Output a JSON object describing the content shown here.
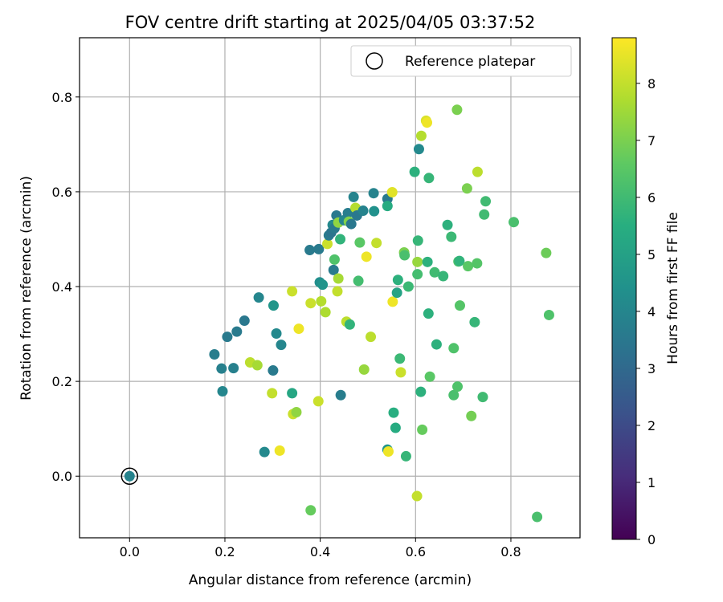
{
  "chart_data": {
    "type": "scatter",
    "title": "FOV centre drift starting at 2025/04/05 03:37:52",
    "xlabel": "Angular distance from reference (arcmin)",
    "ylabel": "Rotation from reference (arcmin)",
    "xlim": [
      -0.105,
      0.945
    ],
    "ylim": [
      -0.13,
      0.925
    ],
    "x_ticks": [
      "0.0",
      "0.2",
      "0.4",
      "0.6",
      "0.8"
    ],
    "y_ticks": [
      "0.0",
      "0.2",
      "0.4",
      "0.6",
      "0.8"
    ],
    "grid": true,
    "legend": {
      "placement": "top-right",
      "entries": [
        "Reference platepar"
      ]
    },
    "colorbar": {
      "label": "Hours from first FF file",
      "colormap": "viridis",
      "range": [
        0,
        8.8
      ],
      "ticks": [
        "0",
        "1",
        "2",
        "3",
        "4",
        "5",
        "6",
        "7",
        "8"
      ]
    },
    "reference_point": {
      "x": 0.0,
      "y": 0.0
    },
    "points": [
      [
        0.0,
        0.0,
        3.9
      ],
      [
        0.178,
        0.257,
        3.7
      ],
      [
        0.193,
        0.227,
        3.8
      ],
      [
        0.195,
        0.179,
        4.0
      ],
      [
        0.205,
        0.294,
        3.6
      ],
      [
        0.218,
        0.228,
        3.8
      ],
      [
        0.225,
        0.305,
        3.6
      ],
      [
        0.241,
        0.328,
        3.5
      ],
      [
        0.253,
        0.24,
        7.9
      ],
      [
        0.268,
        0.234,
        7.6
      ],
      [
        0.271,
        0.377,
        4.0
      ],
      [
        0.283,
        0.051,
        4.1
      ],
      [
        0.302,
        0.36,
        4.6
      ],
      [
        0.301,
        0.223,
        3.6
      ],
      [
        0.299,
        0.175,
        8.0
      ],
      [
        0.308,
        0.301,
        4.1
      ],
      [
        0.318,
        0.277,
        4.0
      ],
      [
        0.315,
        0.054,
        8.6
      ],
      [
        0.341,
        0.39,
        8.1
      ],
      [
        0.341,
        0.175,
        5.2
      ],
      [
        0.343,
        0.131,
        8.1
      ],
      [
        0.35,
        0.135,
        7.3
      ],
      [
        0.355,
        0.311,
        8.6
      ],
      [
        0.378,
        0.477,
        3.6
      ],
      [
        0.38,
        0.365,
        8.1
      ],
      [
        0.38,
        -0.072,
        6.7
      ],
      [
        0.396,
        0.158,
        8.1
      ],
      [
        0.397,
        0.479,
        3.6
      ],
      [
        0.399,
        0.409,
        4.3
      ],
      [
        0.402,
        0.369,
        7.8
      ],
      [
        0.405,
        0.404,
        4.5
      ],
      [
        0.411,
        0.346,
        7.7
      ],
      [
        0.415,
        0.49,
        8.1
      ],
      [
        0.418,
        0.508,
        3.6
      ],
      [
        0.423,
        0.514,
        3.4
      ],
      [
        0.426,
        0.53,
        4.1
      ],
      [
        0.428,
        0.435,
        3.6
      ],
      [
        0.43,
        0.457,
        6.3
      ],
      [
        0.43,
        0.523,
        3.6
      ],
      [
        0.434,
        0.55,
        3.5
      ],
      [
        0.436,
        0.39,
        8.0
      ],
      [
        0.438,
        0.417,
        7.6
      ],
      [
        0.438,
        0.535,
        7.3
      ],
      [
        0.442,
        0.5,
        5.7
      ],
      [
        0.443,
        0.171,
        3.7
      ],
      [
        0.45,
        0.54,
        4.0
      ],
      [
        0.455,
        0.326,
        7.9
      ],
      [
        0.458,
        0.555,
        3.7
      ],
      [
        0.46,
        0.537,
        7.1
      ],
      [
        0.462,
        0.32,
        5.7
      ],
      [
        0.465,
        0.532,
        3.5
      ],
      [
        0.47,
        0.589,
        3.9
      ],
      [
        0.474,
        0.566,
        7.8
      ],
      [
        0.477,
        0.55,
        3.5
      ],
      [
        0.48,
        0.412,
        6.1
      ],
      [
        0.483,
        0.493,
        6.5
      ],
      [
        0.49,
        0.56,
        3.9
      ],
      [
        0.492,
        0.225,
        7.4
      ],
      [
        0.497,
        0.463,
        8.6
      ],
      [
        0.506,
        0.294,
        7.9
      ],
      [
        0.512,
        0.597,
        3.9
      ],
      [
        0.513,
        0.559,
        4.4
      ],
      [
        0.518,
        0.492,
        8.0
      ],
      [
        0.541,
        0.585,
        3.6
      ],
      [
        0.541,
        0.056,
        4.6
      ],
      [
        0.541,
        0.57,
        5.4
      ],
      [
        0.543,
        0.052,
        8.6
      ],
      [
        0.551,
        0.599,
        8.4
      ],
      [
        0.552,
        0.368,
        8.6
      ],
      [
        0.554,
        0.134,
        5.5
      ],
      [
        0.558,
        0.102,
        5.4
      ],
      [
        0.561,
        0.387,
        5.1
      ],
      [
        0.563,
        0.414,
        5.6
      ],
      [
        0.567,
        0.248,
        5.9
      ],
      [
        0.569,
        0.219,
        8.1
      ],
      [
        0.576,
        0.472,
        7.0
      ],
      [
        0.577,
        0.466,
        6.2
      ],
      [
        0.58,
        0.042,
        5.8
      ],
      [
        0.585,
        0.4,
        5.9
      ],
      [
        0.598,
        0.642,
        5.6
      ],
      [
        0.603,
        -0.042,
        8.0
      ],
      [
        0.604,
        0.452,
        7.4
      ],
      [
        0.604,
        0.426,
        6.1
      ],
      [
        0.605,
        0.497,
        5.8
      ],
      [
        0.607,
        0.69,
        4.1
      ],
      [
        0.611,
        0.178,
        5.6
      ],
      [
        0.612,
        0.718,
        7.8
      ],
      [
        0.614,
        0.098,
        6.7
      ],
      [
        0.622,
        0.75,
        8.3
      ],
      [
        0.624,
        0.746,
        8.6
      ],
      [
        0.625,
        0.452,
        5.6
      ],
      [
        0.627,
        0.343,
        5.6
      ],
      [
        0.628,
        0.629,
        5.8
      ],
      [
        0.63,
        0.21,
        6.5
      ],
      [
        0.64,
        0.43,
        6.0
      ],
      [
        0.644,
        0.278,
        5.6
      ],
      [
        0.658,
        0.422,
        5.8
      ],
      [
        0.667,
        0.53,
        5.6
      ],
      [
        0.675,
        0.505,
        5.9
      ],
      [
        0.68,
        0.171,
        6.2
      ],
      [
        0.68,
        0.27,
        6.3
      ],
      [
        0.687,
        0.773,
        7.0
      ],
      [
        0.688,
        0.189,
        6.3
      ],
      [
        0.69,
        0.453,
        6.3
      ],
      [
        0.692,
        0.454,
        5.7
      ],
      [
        0.693,
        0.36,
        6.4
      ],
      [
        0.708,
        0.607,
        7.0
      ],
      [
        0.71,
        0.443,
        6.5
      ],
      [
        0.717,
        0.127,
        6.9
      ],
      [
        0.724,
        0.325,
        5.8
      ],
      [
        0.729,
        0.449,
        6.4
      ],
      [
        0.73,
        0.642,
        7.9
      ],
      [
        0.741,
        0.167,
        6.0
      ],
      [
        0.744,
        0.552,
        6.0
      ],
      [
        0.747,
        0.58,
        6.0
      ],
      [
        0.806,
        0.536,
        6.2
      ],
      [
        0.855,
        -0.086,
        6.2
      ],
      [
        0.874,
        0.471,
        6.8
      ],
      [
        0.88,
        0.34,
        6.3
      ]
    ]
  }
}
